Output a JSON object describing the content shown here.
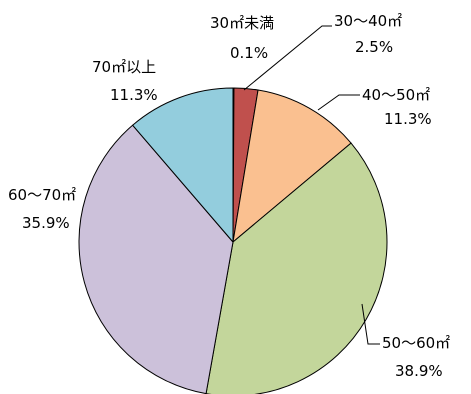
{
  "chart_data": {
    "type": "pie",
    "start_angle_deg": 0,
    "direction": "clockwise",
    "slices": [
      {
        "label": "30㎡未満",
        "value_text": "0.1%",
        "value": 0.1,
        "color": "#B94A48"
      },
      {
        "label": "30～40㎡",
        "value_text": "2.5%",
        "value": 2.5,
        "color": "#C0504D"
      },
      {
        "label": "40～50㎡",
        "value_text": "11.3%",
        "value": 11.3,
        "color": "#FAC090"
      },
      {
        "label": "50～60㎡",
        "value_text": "38.9%",
        "value": 38.9,
        "color": "#C3D69B"
      },
      {
        "label": "60～70㎡",
        "value_text": "35.9%",
        "value": 35.9,
        "color": "#CCC1DA"
      },
      {
        "label": "70㎡以上",
        "value_text": "11.3%",
        "value": 11.3,
        "color": "#93CDDD"
      }
    ]
  }
}
